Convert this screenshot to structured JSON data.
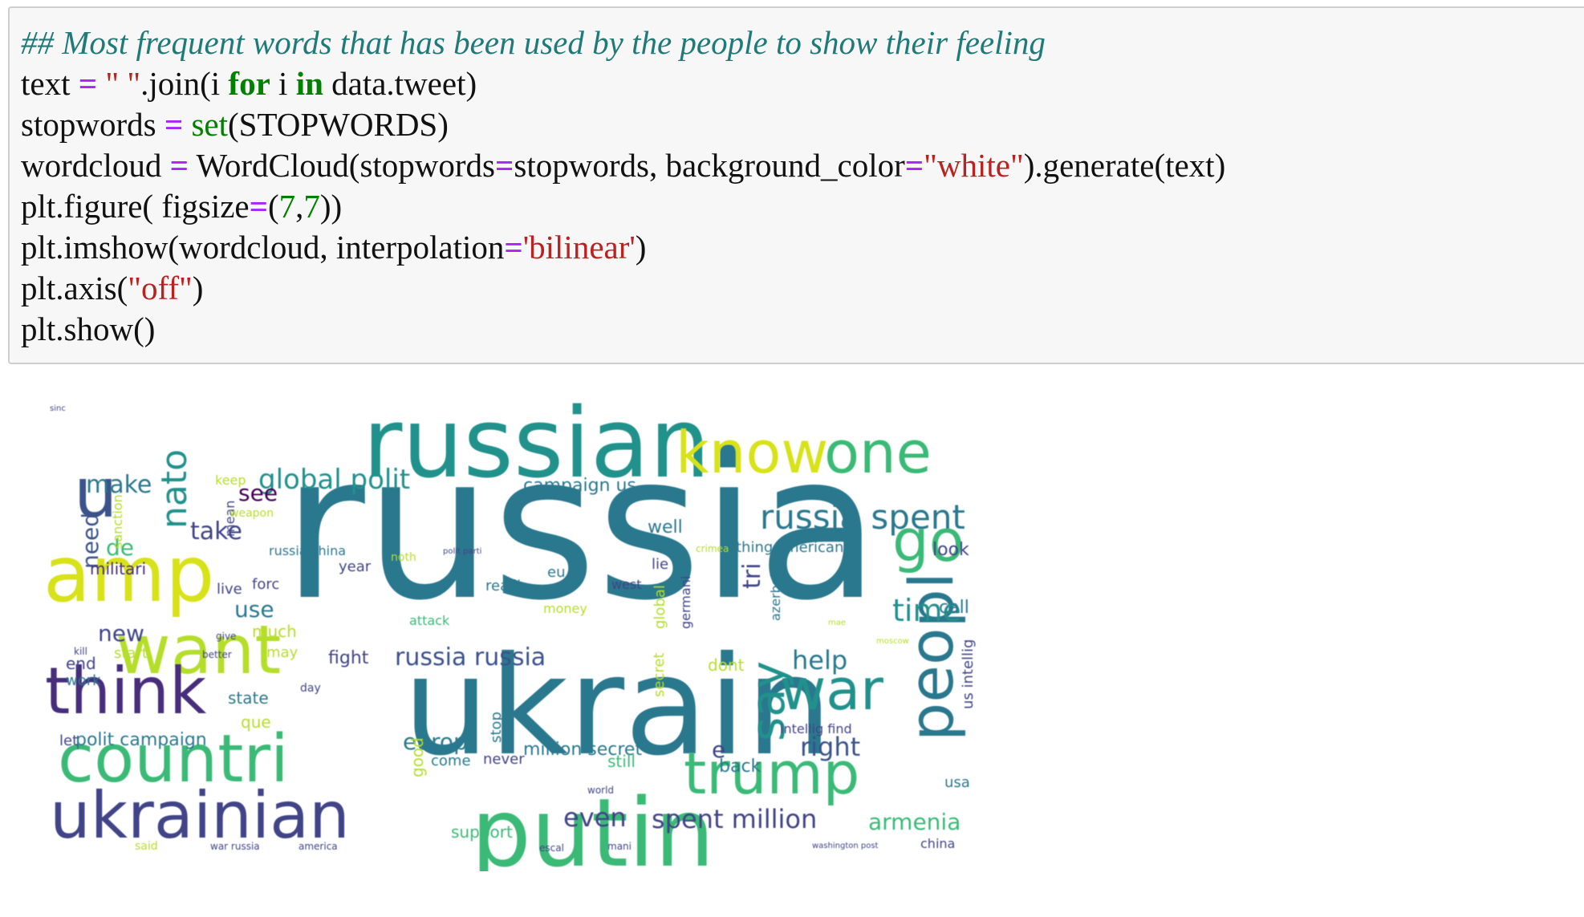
{
  "code": {
    "lines": [
      [
        {
          "t": "## Most frequent words that has been used by the people to show their feeling",
          "c": "comment"
        }
      ],
      [
        {
          "t": "text ",
          "c": "plain"
        },
        {
          "t": "=",
          "c": "op"
        },
        {
          "t": " ",
          "c": "plain"
        },
        {
          "t": "\" \"",
          "c": "string"
        },
        {
          "t": ".join(i ",
          "c": "plain"
        },
        {
          "t": "for",
          "c": "kw"
        },
        {
          "t": " i ",
          "c": "plain"
        },
        {
          "t": "in",
          "c": "kw"
        },
        {
          "t": " data.tweet)",
          "c": "plain"
        }
      ],
      [
        {
          "t": "stopwords ",
          "c": "plain"
        },
        {
          "t": "=",
          "c": "op"
        },
        {
          "t": " ",
          "c": "plain"
        },
        {
          "t": "set",
          "c": "builtin"
        },
        {
          "t": "(STOPWORDS)",
          "c": "plain"
        }
      ],
      [
        {
          "t": "wordcloud ",
          "c": "plain"
        },
        {
          "t": "=",
          "c": "op"
        },
        {
          "t": " WordCloud(stopwords",
          "c": "plain"
        },
        {
          "t": "=",
          "c": "op"
        },
        {
          "t": "stopwords, background_color",
          "c": "plain"
        },
        {
          "t": "=",
          "c": "op"
        },
        {
          "t": "\"white\"",
          "c": "string"
        },
        {
          "t": ").generate(text)",
          "c": "plain"
        }
      ],
      [
        {
          "t": "plt.figure( figsize",
          "c": "plain"
        },
        {
          "t": "=",
          "c": "op"
        },
        {
          "t": "(",
          "c": "plain"
        },
        {
          "t": "7",
          "c": "number"
        },
        {
          "t": ",",
          "c": "plain"
        },
        {
          "t": "7",
          "c": "number"
        },
        {
          "t": "))",
          "c": "plain"
        }
      ],
      [
        {
          "t": "plt.imshow(wordcloud, interpolation",
          "c": "plain"
        },
        {
          "t": "=",
          "c": "op"
        },
        {
          "t": "'bilinear'",
          "c": "string"
        },
        {
          "t": ")",
          "c": "plain"
        }
      ],
      [
        {
          "t": "plt.axis(",
          "c": "plain"
        },
        {
          "t": "\"off\"",
          "c": "string"
        },
        {
          "t": ")",
          "c": "plain"
        }
      ],
      [
        {
          "t": "plt.show()",
          "c": "plain"
        }
      ]
    ]
  },
  "colors": {
    "comment": "#1f7a78",
    "op": "#aa22ff",
    "kw": "#008000",
    "builtin": "#008000",
    "string": "#ba2121",
    "number": "#008000",
    "plain": "#111111",
    "viridis": {
      "teal": "#2a788e",
      "blueteal": "#21918c",
      "green": "#3aba76",
      "lightgreen": "#75d054",
      "yellow": "#d8e219",
      "lime": "#b5de2b",
      "purple": "#472d7b",
      "darkpurple": "#440154",
      "indigo": "#3b528b",
      "slate": "#414487"
    }
  },
  "wordcloud": {
    "words": [
      {
        "text": "russia",
        "size": 250,
        "color": "teal",
        "vertical": false
      },
      {
        "text": "ukrain",
        "size": 170,
        "color": "teal",
        "vertical": false
      },
      {
        "text": "russian",
        "size": 120,
        "color": "blueteal",
        "vertical": false
      },
      {
        "text": "putin",
        "size": 118,
        "color": "green",
        "vertical": false
      },
      {
        "text": "amp",
        "size": 96,
        "color": "yellow",
        "vertical": false
      },
      {
        "text": "u",
        "size": 86,
        "color": "indigo",
        "vertical": false
      },
      {
        "text": "want",
        "size": 84,
        "color": "lime",
        "vertical": false
      },
      {
        "text": "think",
        "size": 80,
        "color": "purple",
        "vertical": false
      },
      {
        "text": "countri",
        "size": 82,
        "color": "green",
        "vertical": false
      },
      {
        "text": "ukrainian",
        "size": 80,
        "color": "slate",
        "vertical": false
      },
      {
        "text": "know",
        "size": 72,
        "color": "yellow",
        "vertical": false
      },
      {
        "text": "one",
        "size": 72,
        "color": "green",
        "vertical": false
      },
      {
        "text": "go",
        "size": 72,
        "color": "green",
        "vertical": false
      },
      {
        "text": "trump",
        "size": 72,
        "color": "green",
        "vertical": false
      },
      {
        "text": "war",
        "size": 70,
        "color": "blueteal",
        "vertical": false
      },
      {
        "text": "peopl",
        "size": 76,
        "color": "teal",
        "vertical": true
      },
      {
        "text": "say",
        "size": 58,
        "color": "blueteal",
        "vertical": true
      },
      {
        "text": "nato",
        "size": 44,
        "color": "blueteal",
        "vertical": true
      },
      {
        "text": "russia spent",
        "size": 42,
        "color": "teal",
        "vertical": false
      },
      {
        "text": "time",
        "size": 38,
        "color": "blueteal",
        "vertical": false
      },
      {
        "text": "global polit",
        "size": 34,
        "color": "blueteal",
        "vertical": false
      },
      {
        "text": "make",
        "size": 30,
        "color": "teal",
        "vertical": false
      },
      {
        "text": "russia russia",
        "size": 30,
        "color": "indigo",
        "vertical": false
      },
      {
        "text": "help",
        "size": 32,
        "color": "teal",
        "vertical": false
      },
      {
        "text": "right",
        "size": 32,
        "color": "indigo",
        "vertical": false
      },
      {
        "text": "spent million",
        "size": 32,
        "color": "slate",
        "vertical": false
      },
      {
        "text": "armenia",
        "size": 28,
        "color": "green",
        "vertical": false
      },
      {
        "text": "even",
        "size": 32,
        "color": "slate",
        "vertical": false
      },
      {
        "text": "europ",
        "size": 28,
        "color": "teal",
        "vertical": false
      },
      {
        "text": "take",
        "size": 30,
        "color": "slate",
        "vertical": false
      },
      {
        "text": "see",
        "size": 28,
        "color": "darkpurple",
        "vertical": false
      },
      {
        "text": "new",
        "size": 28,
        "color": "slate",
        "vertical": false
      },
      {
        "text": "use",
        "size": 28,
        "color": "teal",
        "vertical": false
      },
      {
        "text": "de",
        "size": 28,
        "color": "green",
        "vertical": false
      },
      {
        "text": "need",
        "size": 28,
        "color": "indigo",
        "vertical": true
      },
      {
        "text": "tri",
        "size": 30,
        "color": "slate",
        "vertical": true
      },
      {
        "text": "campaign us",
        "size": 22,
        "color": "teal",
        "vertical": false
      },
      {
        "text": "polit campaign",
        "size": 22,
        "color": "teal",
        "vertical": false
      },
      {
        "text": "million secret",
        "size": 22,
        "color": "teal",
        "vertical": false
      },
      {
        "text": "militari",
        "size": 20,
        "color": "purple",
        "vertical": false
      },
      {
        "text": "look",
        "size": 22,
        "color": "slate",
        "vertical": false
      },
      {
        "text": "call",
        "size": 22,
        "color": "teal",
        "vertical": false
      },
      {
        "text": "fight",
        "size": 22,
        "color": "slate",
        "vertical": false
      },
      {
        "text": "end",
        "size": 20,
        "color": "slate",
        "vertical": false
      },
      {
        "text": "work",
        "size": 18,
        "color": "teal",
        "vertical": false
      },
      {
        "text": "state",
        "size": 20,
        "color": "teal",
        "vertical": false
      },
      {
        "text": "que",
        "size": 20,
        "color": "lime",
        "vertical": false
      },
      {
        "text": "let",
        "size": 18,
        "color": "slate",
        "vertical": false
      },
      {
        "text": "back",
        "size": 22,
        "color": "teal",
        "vertical": false
      },
      {
        "text": "never",
        "size": 18,
        "color": "slate",
        "vertical": false
      },
      {
        "text": "still",
        "size": 20,
        "color": "green",
        "vertical": false
      },
      {
        "text": "come",
        "size": 18,
        "color": "teal",
        "vertical": false
      },
      {
        "text": "support",
        "size": 20,
        "color": "green",
        "vertical": false
      },
      {
        "text": "well",
        "size": 22,
        "color": "teal",
        "vertical": false
      },
      {
        "text": "thing",
        "size": 18,
        "color": "teal",
        "vertical": false
      },
      {
        "text": "american",
        "size": 18,
        "color": "teal",
        "vertical": false
      },
      {
        "text": "russia china",
        "size": 16,
        "color": "teal",
        "vertical": false
      },
      {
        "text": "year",
        "size": 18,
        "color": "slate",
        "vertical": false
      },
      {
        "text": "realli",
        "size": 18,
        "color": "teal",
        "vertical": false
      },
      {
        "text": "lie",
        "size": 18,
        "color": "slate",
        "vertical": false
      },
      {
        "text": "eu",
        "size": 18,
        "color": "teal",
        "vertical": false
      },
      {
        "text": "live",
        "size": 18,
        "color": "slate",
        "vertical": false
      },
      {
        "text": "forc",
        "size": 18,
        "color": "slate",
        "vertical": false
      },
      {
        "text": "much",
        "size": 20,
        "color": "lime",
        "vertical": false
      },
      {
        "text": "start",
        "size": 18,
        "color": "lime",
        "vertical": false
      },
      {
        "text": "may",
        "size": 18,
        "color": "lime",
        "vertical": false
      },
      {
        "text": "dont",
        "size": 20,
        "color": "lime",
        "vertical": false
      },
      {
        "text": "e",
        "size": 28,
        "color": "slate",
        "vertical": false
      },
      {
        "text": "intellig find",
        "size": 16,
        "color": "slate",
        "vertical": false
      },
      {
        "text": "us intellig",
        "size": 18,
        "color": "slate",
        "vertical": true
      },
      {
        "text": "usa",
        "size": 18,
        "color": "teal",
        "vertical": false
      },
      {
        "text": "china",
        "size": 16,
        "color": "slate",
        "vertical": false
      },
      {
        "text": "attack",
        "size": 16,
        "color": "green",
        "vertical": false
      },
      {
        "text": "money",
        "size": 16,
        "color": "lime",
        "vertical": false
      },
      {
        "text": "west",
        "size": 16,
        "color": "slate",
        "vertical": false
      },
      {
        "text": "keep",
        "size": 16,
        "color": "lime",
        "vertical": false
      },
      {
        "text": "stop",
        "size": 18,
        "color": "teal",
        "vertical": true
      },
      {
        "text": "good",
        "size": 20,
        "color": "lime",
        "vertical": true
      },
      {
        "text": "secret",
        "size": 18,
        "color": "lime",
        "vertical": true
      },
      {
        "text": "global",
        "size": 18,
        "color": "lime",
        "vertical": true
      },
      {
        "text": "germani",
        "size": 16,
        "color": "slate",
        "vertical": true
      },
      {
        "text": "azerbaijan",
        "size": 16,
        "color": "teal",
        "vertical": true
      },
      {
        "text": "sanction",
        "size": 16,
        "color": "lime",
        "vertical": true
      },
      {
        "text": "mean",
        "size": 16,
        "color": "slate",
        "vertical": true
      },
      {
        "text": "day",
        "size": 14,
        "color": "slate",
        "vertical": false
      },
      {
        "text": "said",
        "size": 14,
        "color": "lime",
        "vertical": false
      },
      {
        "text": "war russia",
        "size": 12,
        "color": "slate",
        "vertical": false
      },
      {
        "text": "america",
        "size": 12,
        "color": "slate",
        "vertical": false
      },
      {
        "text": "crimea",
        "size": 12,
        "color": "lime",
        "vertical": false
      },
      {
        "text": "give",
        "size": 12,
        "color": "slate",
        "vertical": false
      },
      {
        "text": "kill",
        "size": 12,
        "color": "slate",
        "vertical": false
      },
      {
        "text": "better",
        "size": 12,
        "color": "slate",
        "vertical": false
      },
      {
        "text": "weapon",
        "size": 14,
        "color": "lime",
        "vertical": false
      },
      {
        "text": "noth",
        "size": 14,
        "color": "lime",
        "vertical": false
      },
      {
        "text": "escal",
        "size": 12,
        "color": "slate",
        "vertical": false
      },
      {
        "text": "world",
        "size": 12,
        "color": "slate",
        "vertical": false
      },
      {
        "text": "mani",
        "size": 12,
        "color": "slate",
        "vertical": false
      },
      {
        "text": "washington post",
        "size": 10,
        "color": "slate",
        "vertical": false
      },
      {
        "text": "polit parti",
        "size": 10,
        "color": "slate",
        "vertical": false
      },
      {
        "text": "sinc",
        "size": 10,
        "color": "slate",
        "vertical": false
      },
      {
        "text": "moscow",
        "size": 10,
        "color": "lime",
        "vertical": false
      },
      {
        "text": "mae",
        "size": 10,
        "color": "lime",
        "vertical": false
      }
    ]
  }
}
